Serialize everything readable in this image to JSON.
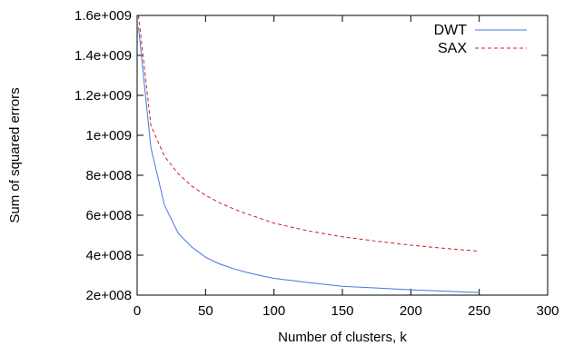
{
  "chart_data": {
    "type": "line",
    "title": "",
    "xlabel": "Number of clusters, k",
    "ylabel": "Sum of squared errors",
    "xlim": [
      0,
      300
    ],
    "ylim": [
      200000000,
      1600000000
    ],
    "x_ticks": [
      0,
      50,
      100,
      150,
      200,
      250,
      300
    ],
    "x_tick_labels": [
      "0",
      "50",
      "100",
      "150",
      "200",
      "250",
      "300"
    ],
    "y_ticks": [
      200000000,
      400000000,
      600000000,
      800000000,
      1000000000,
      1200000000,
      1400000000,
      1600000000
    ],
    "y_tick_labels": [
      "2e+008",
      "4e+008",
      "6e+008",
      "8e+008",
      "1e+009",
      "1.2e+009",
      "1.4e+009",
      "1.6e+009"
    ],
    "grid": false,
    "legend_position": "top-right",
    "series": [
      {
        "name": "DWT",
        "color": "#4477dd",
        "dash": "solid",
        "x": [
          1,
          10,
          20,
          30,
          40,
          50,
          60,
          70,
          80,
          90,
          100,
          125,
          150,
          175,
          200,
          225,
          250
        ],
        "y": [
          1540000000,
          940000000,
          650000000,
          510000000,
          440000000,
          390000000,
          357000000,
          333000000,
          314000000,
          298000000,
          284000000,
          263000000,
          244000000,
          236000000,
          227000000,
          220000000,
          213000000
        ]
      },
      {
        "name": "SAX",
        "color": "#cc2222",
        "dash": "dashed",
        "x": [
          1,
          10,
          20,
          30,
          40,
          50,
          60,
          70,
          80,
          90,
          100,
          125,
          150,
          175,
          200,
          225,
          250
        ],
        "y": [
          1600000000,
          1050000000,
          895000000,
          808000000,
          745000000,
          700000000,
          663000000,
          633000000,
          607000000,
          584000000,
          560000000,
          522000000,
          492000000,
          470000000,
          450000000,
          434000000,
          420000000
        ]
      }
    ]
  }
}
